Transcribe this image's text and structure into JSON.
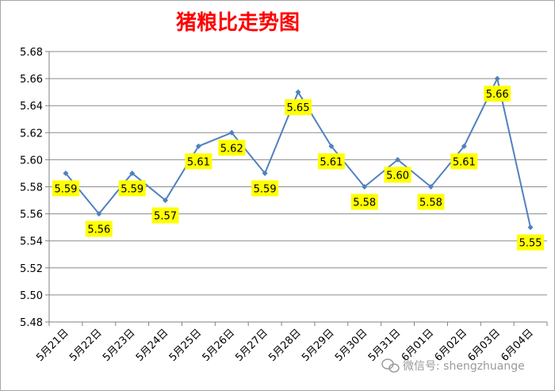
{
  "colors": {
    "title": "#ff0000",
    "line": "#4f81bd",
    "label_bg": "#ffff00",
    "grid": "#8c8c8c",
    "frame": "#a6a6a6",
    "axis": "#808080"
  },
  "watermark": {
    "text": "微信号: shengzhuange",
    "icon": "wechat-icon"
  },
  "chart_data": {
    "type": "line",
    "title": "猪粮比走势图",
    "xlabel": "",
    "ylabel": "",
    "categories": [
      "5月21日",
      "5月22日",
      "5月23日",
      "5月24日",
      "5月25日",
      "5月26日",
      "5月27日",
      "5月28日",
      "5月29日",
      "5月30日",
      "5月31日",
      "6月01日",
      "6月02日",
      "6月03日",
      "6月04日"
    ],
    "values": [
      5.59,
      5.56,
      5.59,
      5.57,
      5.61,
      5.62,
      5.59,
      5.65,
      5.61,
      5.58,
      5.6,
      5.58,
      5.61,
      5.66,
      5.55
    ],
    "data_labels": [
      "5.59",
      "5.56",
      "5.59",
      "5.57",
      "5.61",
      "5.62",
      "5.59",
      "5.65",
      "5.61",
      "5.58",
      "5.60",
      "5.58",
      "5.61",
      "5.66",
      "5.55"
    ],
    "y_ticks": [
      "5.48",
      "5.50",
      "5.52",
      "5.54",
      "5.56",
      "5.58",
      "5.60",
      "5.62",
      "5.64",
      "5.66",
      "5.68"
    ],
    "ylim": [
      5.48,
      5.68
    ],
    "grid": true,
    "legend": "none"
  }
}
